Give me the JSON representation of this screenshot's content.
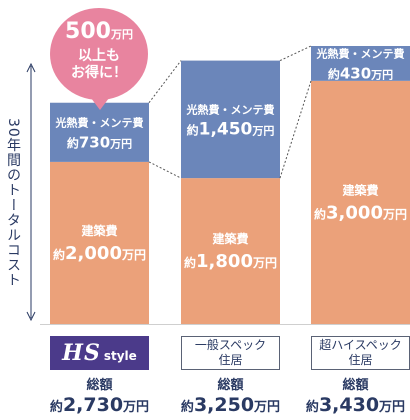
{
  "chart_data": {
    "type": "bar",
    "stacked": true,
    "y_axis_label": "30年間のトータルコスト",
    "unit": "万円",
    "categories": [
      "HS style",
      "一般スペック住居",
      "超ハイスペック住居"
    ],
    "series": [
      {
        "name": "建築費",
        "values": [
          2000,
          1800,
          3000
        ],
        "color": "#eba17a"
      },
      {
        "name": "光熱費・メンテ費",
        "values": [
          730,
          1450,
          430
        ],
        "color": "#6b86ba"
      }
    ],
    "totals": [
      2730,
      3250,
      3430
    ],
    "grid": false,
    "ylim": [
      0,
      3430
    ]
  },
  "bars": [
    {
      "build_label": "建築費",
      "build_prefix": "約",
      "build_value": "2,000",
      "build_unit": "万円",
      "util_label": "光熱費・メンテ費",
      "util_prefix": "約",
      "util_value": "730",
      "util_unit": "万円"
    },
    {
      "build_label": "建築費",
      "build_prefix": "約",
      "build_value": "1,800",
      "build_unit": "万円",
      "util_label": "光熱費・メンテ費",
      "util_prefix": "約",
      "util_value": "1,450",
      "util_unit": "万円"
    },
    {
      "build_label": "建築費",
      "build_prefix": "約",
      "build_value": "3,000",
      "build_unit": "万円",
      "util_label": "光熱費・メンテ費",
      "util_prefix": "約",
      "util_value": "430",
      "util_unit": "万円"
    }
  ],
  "labels": {
    "hs_mark": "HS",
    "hs_style": "style",
    "general_line1": "一般スペック",
    "general_line2": "住居",
    "super_line1": "超ハイスペック",
    "super_line2": "住居"
  },
  "totals": [
    {
      "label": "総額",
      "prefix": "約",
      "value": "2,730",
      "unit": "万円"
    },
    {
      "label": "総額",
      "prefix": "約",
      "value": "3,250",
      "unit": "万円"
    },
    {
      "label": "総額",
      "prefix": "約",
      "value": "3,430",
      "unit": "万円"
    }
  ],
  "bubble": {
    "amount": "500",
    "unit": "万円",
    "line2": "以上も",
    "line3": "お得に！"
  },
  "colors": {
    "build": "#eba17a",
    "util": "#6b86ba",
    "brand": "#4b3a8a",
    "bubble": "#e8849f",
    "text": "#2a3a63"
  }
}
